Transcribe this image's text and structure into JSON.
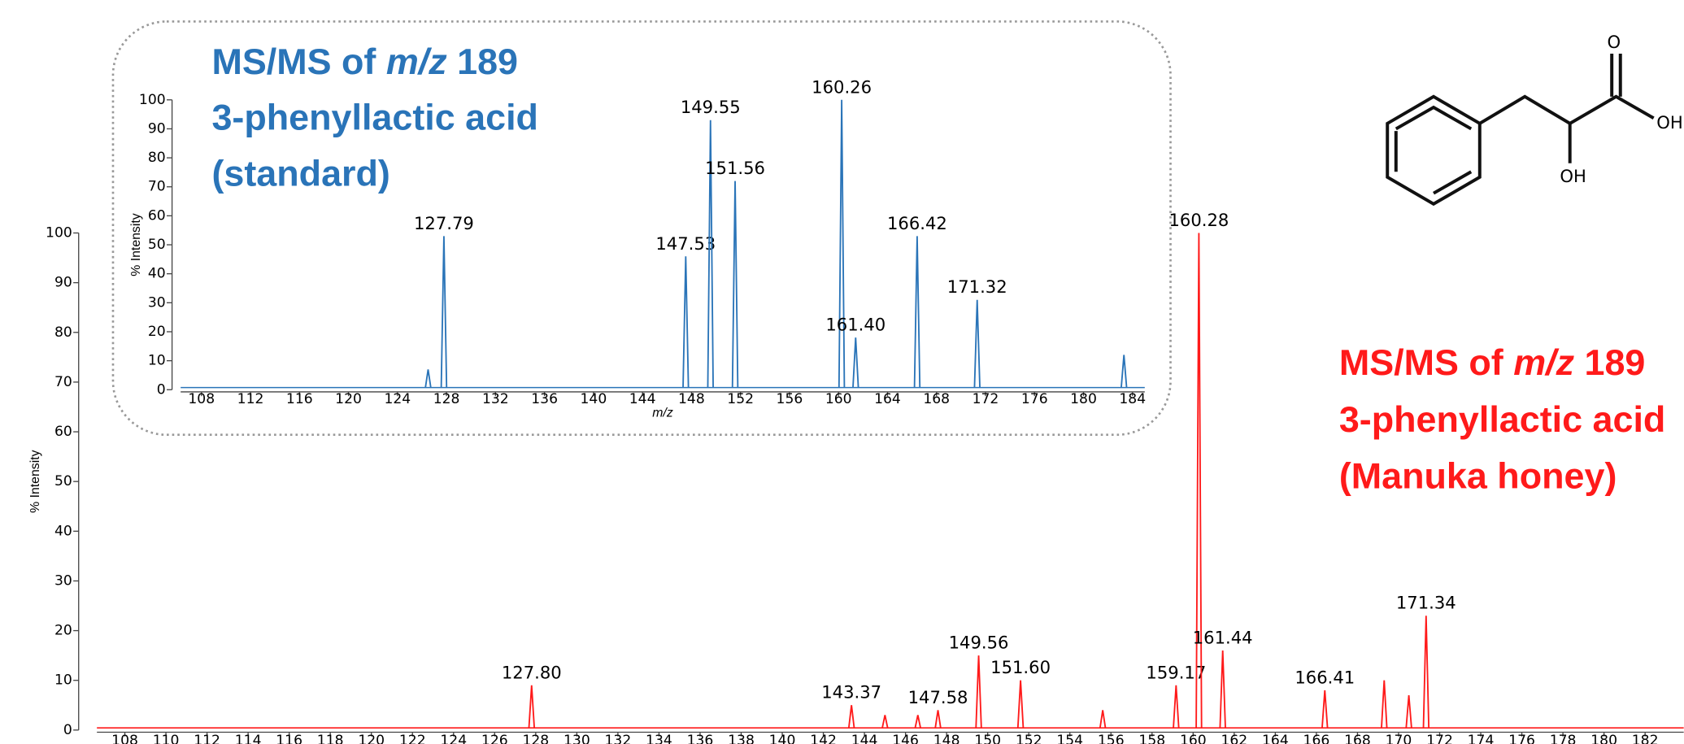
{
  "chart_data": [
    {
      "type": "spectrum",
      "title_parts": [
        "MS/MS of ",
        "m/z",
        " 189"
      ],
      "subtitle_lines": [
        "3-phenyllactic acid",
        "(Manuka honey)"
      ],
      "y_label": "% Intensity",
      "color": "#ff1a1a",
      "x": [
        127.8,
        143.37,
        145.0,
        146.6,
        147.58,
        149.56,
        151.6,
        155.6,
        159.17,
        160.28,
        161.44,
        166.41,
        169.3,
        170.5,
        171.34
      ],
      "values": [
        9,
        5,
        3,
        3,
        4,
        15,
        10,
        4,
        9,
        100,
        16,
        8,
        10,
        7,
        23
      ],
      "x_labels": [
        "127.80",
        "143.37",
        null,
        null,
        "147.58",
        "149.56",
        "151.60",
        null,
        "159.17",
        "160.28",
        "161.44",
        "166.41",
        null,
        null,
        "171.34"
      ],
      "xlim": [
        106.64,
        183.88
      ],
      "ylim": [
        0,
        100
      ],
      "xticks": [
        108,
        110,
        112,
        114,
        116,
        118,
        120,
        122,
        124,
        126,
        128,
        130,
        132,
        134,
        136,
        138,
        140,
        142,
        144,
        146,
        148,
        150,
        152,
        154,
        156,
        158,
        160,
        162,
        164,
        166,
        168,
        170,
        172,
        174,
        176,
        178,
        180,
        182
      ],
      "yticks": [
        0,
        10,
        20,
        30,
        40,
        50,
        60,
        70,
        80,
        90,
        100
      ]
    },
    {
      "type": "spectrum",
      "title_parts": [
        "MS/MS of ",
        "m/z",
        " 189"
      ],
      "subtitle_lines": [
        "3-phenyllactic acid",
        "(standard)"
      ],
      "y_label": "% Intensity",
      "x_label": "m/z",
      "color": "#2a74b8",
      "x": [
        126.5,
        127.79,
        147.53,
        149.55,
        151.56,
        160.26,
        161.4,
        166.42,
        171.32,
        183.3
      ],
      "values": [
        7,
        53,
        46,
        93,
        72,
        100,
        18,
        53,
        31,
        12
      ],
      "x_labels": [
        null,
        "127.79",
        "147.53",
        "149.55",
        "151.56",
        "160.26",
        "161.40",
        "166.42",
        "171.32",
        null
      ],
      "xlim": [
        106.3,
        185.0
      ],
      "ylim": [
        0,
        100
      ],
      "xticks": [
        108,
        112,
        116,
        120,
        124,
        128,
        132,
        136,
        140,
        144,
        148,
        152,
        156,
        160,
        164,
        168,
        172,
        176,
        180,
        184
      ],
      "yticks": [
        0,
        10,
        20,
        30,
        40,
        50,
        60,
        70,
        80,
        90,
        100
      ]
    }
  ],
  "structure": {
    "labels": [
      "O",
      "OH",
      "OH"
    ]
  }
}
